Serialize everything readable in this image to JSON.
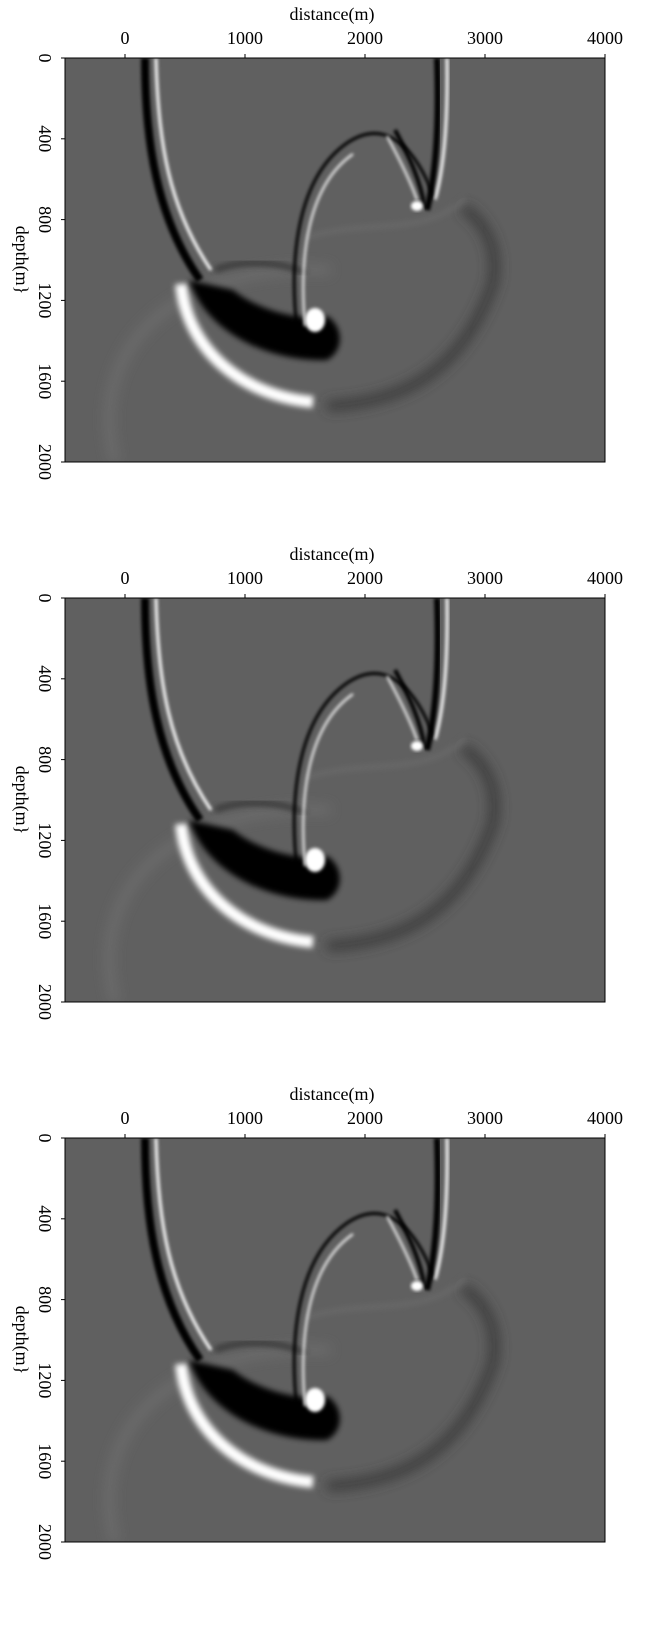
{
  "chart_data": [
    {
      "type": "image",
      "x_label": "distance(m)",
      "y_label": "depth(m}",
      "xlim": [
        -500,
        4000
      ],
      "xticks": [
        0,
        1000,
        2000,
        3000,
        4000
      ],
      "ylim": [
        0,
        2000
      ],
      "yticks": [
        0,
        400,
        800,
        1200,
        1600,
        2000
      ]
    },
    {
      "type": "image",
      "x_label": "distance(m)",
      "y_label": "depth(m}",
      "xlim": [
        -500,
        4000
      ],
      "xticks": [
        0,
        1000,
        2000,
        3000,
        4000
      ],
      "ylim": [
        0,
        2000
      ],
      "yticks": [
        0,
        400,
        800,
        1200,
        1600,
        2000
      ]
    },
    {
      "type": "image",
      "x_label": "distance(m)",
      "y_label": "depth(m}",
      "xlim": [
        -500,
        4000
      ],
      "xticks": [
        0,
        1000,
        2000,
        3000,
        4000
      ],
      "ylim": [
        0,
        2000
      ],
      "yticks": [
        0,
        400,
        800,
        1200,
        1600,
        2000
      ]
    }
  ]
}
